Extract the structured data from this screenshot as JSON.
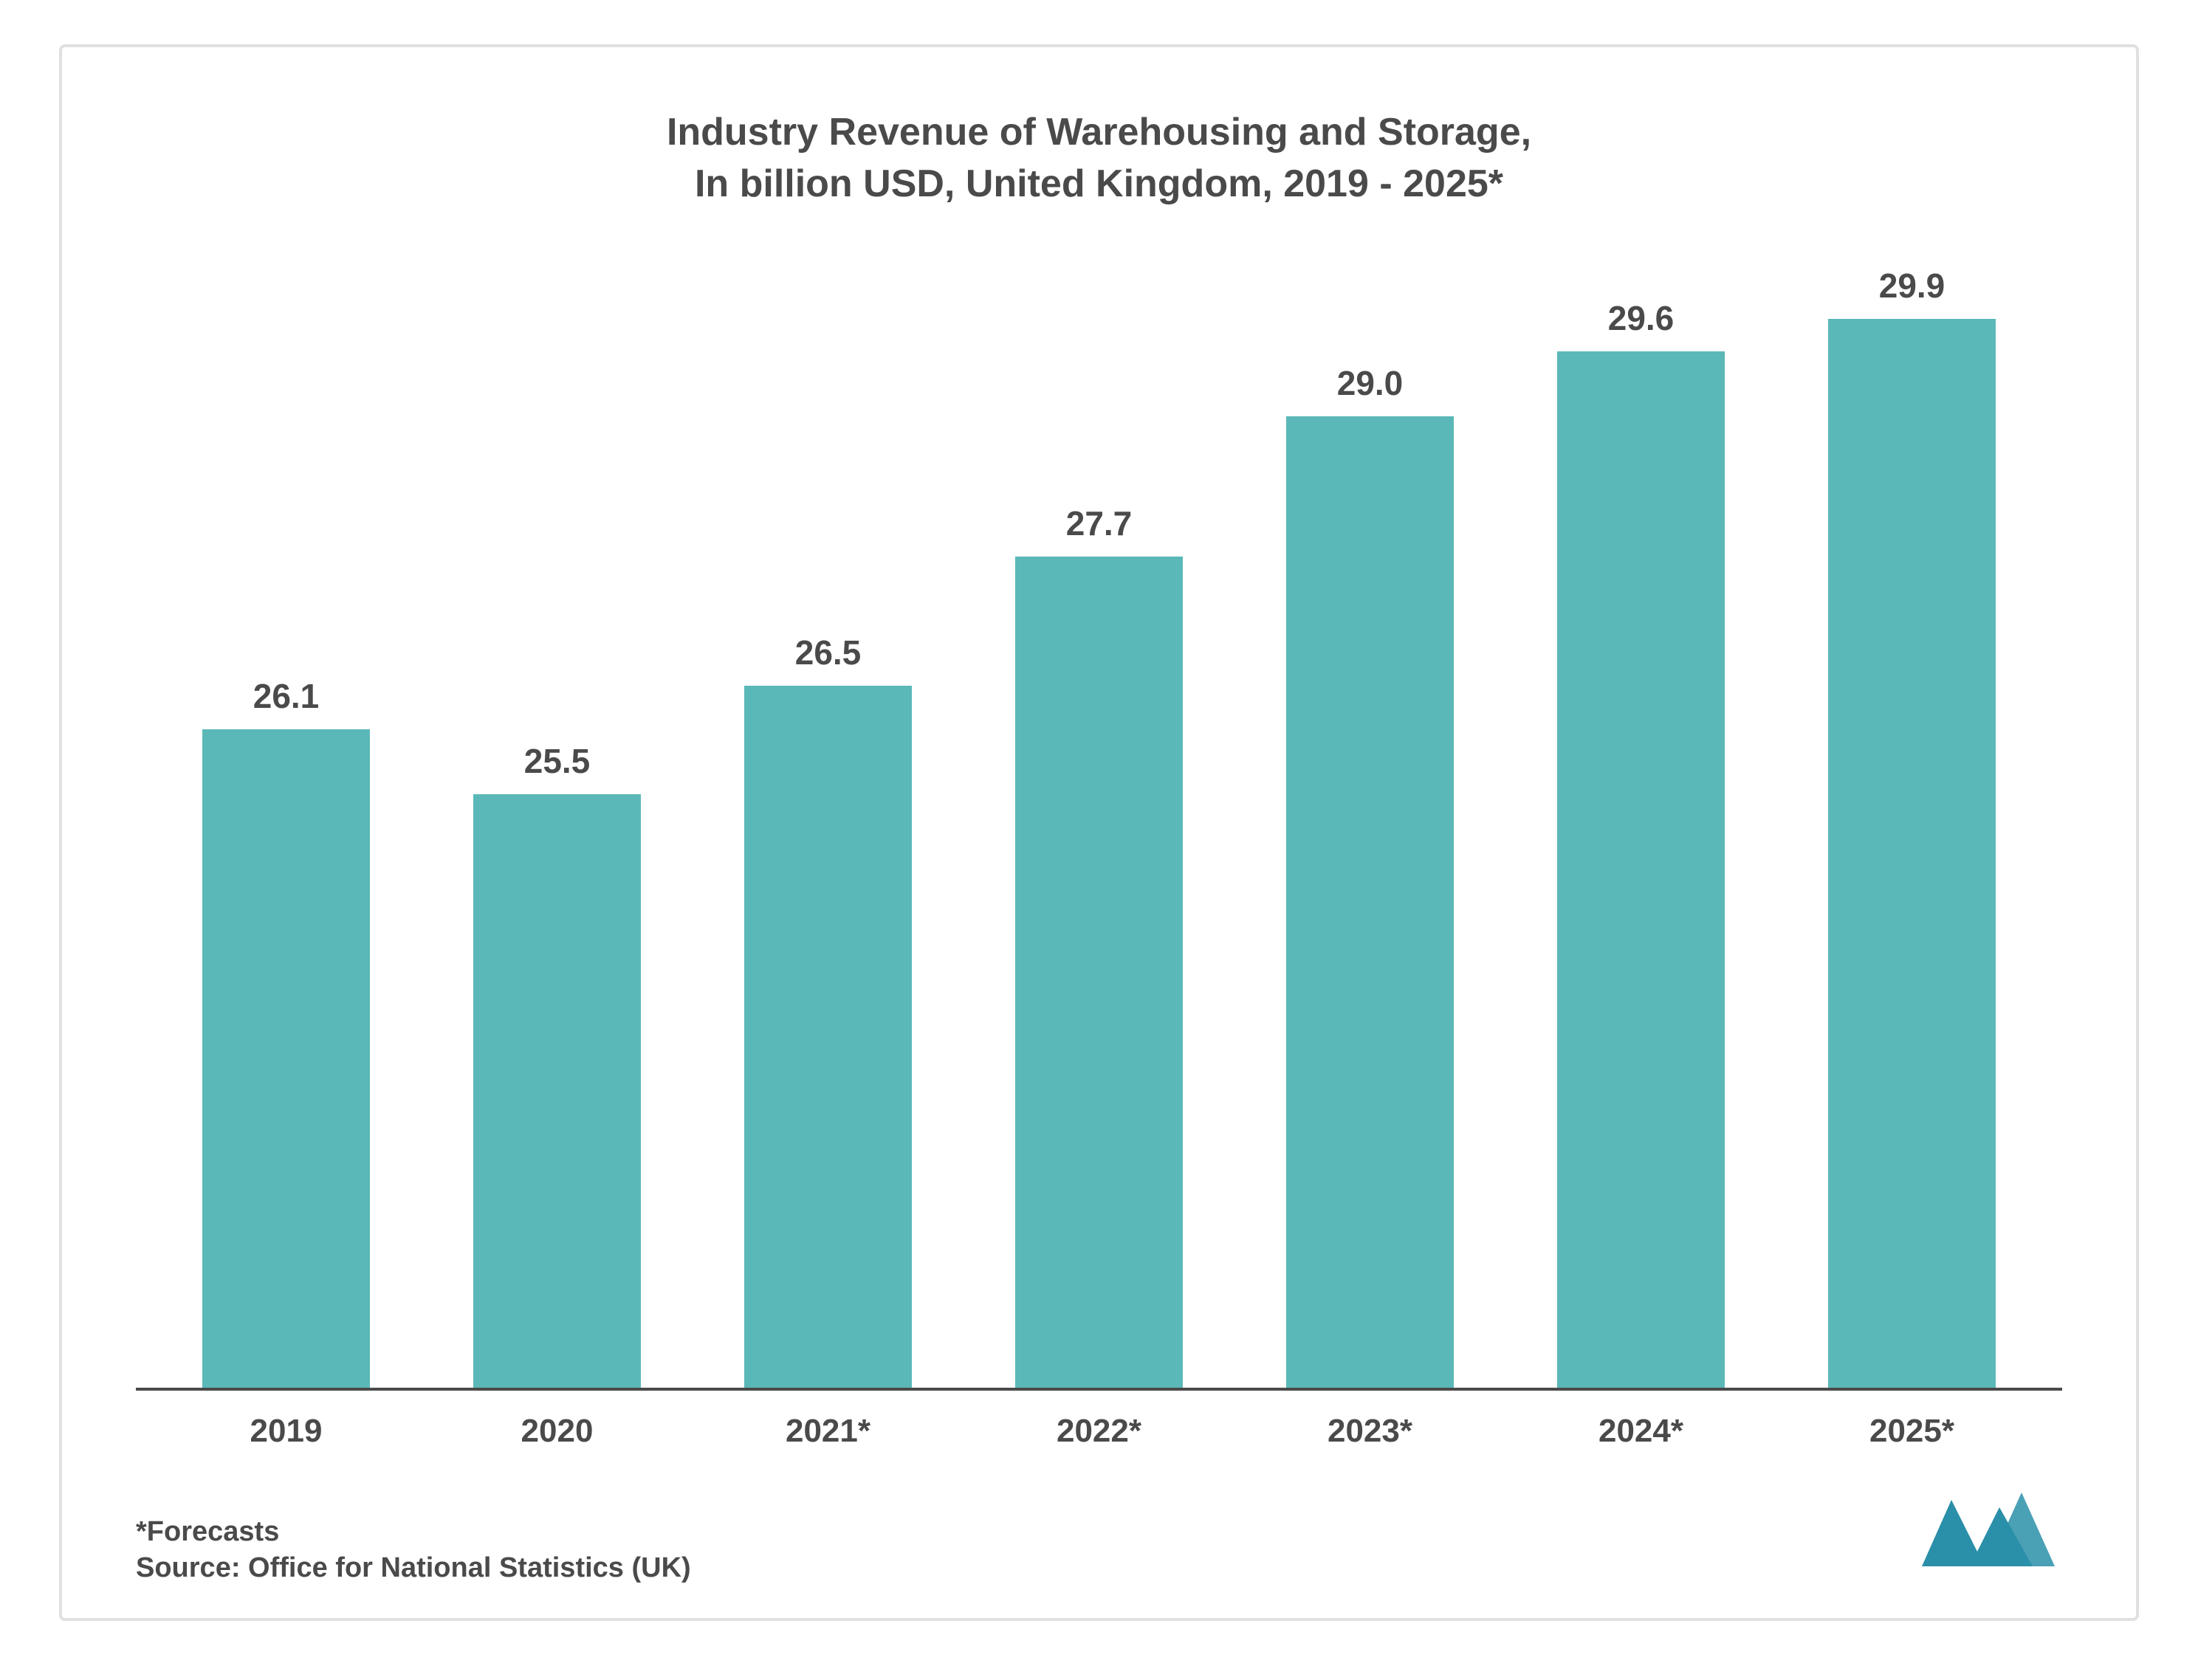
{
  "chart": {
    "type": "bar",
    "title_line1": "Industry Revenue of Warehousing and Storage,",
    "title_line2": "In billion USD, United Kingdom, 2019 - 2025*",
    "title_fontsize": 52,
    "title_color": "#4a4a4a",
    "categories": [
      "2019",
      "2020",
      "2021*",
      "2022*",
      "2023*",
      "2024*",
      "2025*"
    ],
    "values": [
      26.1,
      25.5,
      26.5,
      27.7,
      29.0,
      29.6,
      29.9
    ],
    "value_labels": [
      "26.1",
      "25.5",
      "26.5",
      "27.7",
      "29.0",
      "29.6",
      "29.9"
    ],
    "bar_color": "#5bb8b8",
    "value_label_color": "#4a4a4a",
    "value_label_fontsize": 46,
    "x_label_color": "#4a4a4a",
    "x_label_fontsize": 44,
    "axis_line_color": "#4a4a4a",
    "y_baseline": 20.0,
    "y_max": 30.5,
    "background_color": "#ffffff",
    "bar_width": 0.62
  },
  "footer": {
    "forecast_note": "*Forecasts",
    "source": "Source: Office for National Statistics (UK)",
    "fontsize": 38,
    "color": "#4a4a4a"
  },
  "logo": {
    "fill": "#2a8fa8",
    "width": 180,
    "height": 110
  }
}
